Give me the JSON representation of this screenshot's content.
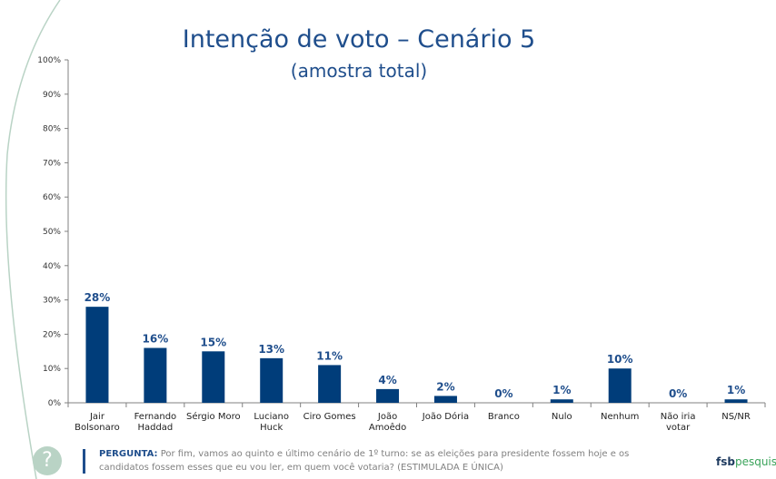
{
  "chart_data": {
    "type": "bar",
    "title": "Intenção de voto – Cenário 5",
    "subtitle": "(amostra total)",
    "categories": [
      [
        "Jair",
        "Bolsonaro"
      ],
      [
        "Fernando",
        "Haddad"
      ],
      [
        "Sérgio Moro"
      ],
      [
        "Luciano",
        "Huck"
      ],
      [
        "Ciro Gomes"
      ],
      [
        "João",
        "Amoêdo"
      ],
      [
        "João Dória"
      ],
      [
        "Branco"
      ],
      [
        "Nulo"
      ],
      [
        "Nenhum"
      ],
      [
        "Não iria",
        "votar"
      ],
      [
        "NS/NR"
      ]
    ],
    "values": [
      28,
      16,
      15,
      13,
      11,
      4,
      2,
      0,
      1,
      10,
      0,
      1
    ],
    "value_labels": [
      "28%",
      "16%",
      "15%",
      "13%",
      "11%",
      "4%",
      "2%",
      "0%",
      "1%",
      "10%",
      "0%",
      "1%"
    ],
    "ylim": [
      0,
      100
    ],
    "yticks": [
      0,
      10,
      20,
      30,
      40,
      50,
      60,
      70,
      80,
      90,
      100
    ],
    "ytick_labels": [
      "0%",
      "10%",
      "20%",
      "30%",
      "40%",
      "50%",
      "60%",
      "70%",
      "80%",
      "90%",
      "100%"
    ],
    "grid": false,
    "bar_color": "#003d7a",
    "label_color": "#1f4e8c"
  },
  "footer": {
    "question_label": "PERGUNTA:",
    "question_text": "Por fim, vamos ao quinto e último cenário de 1º turno: se as eleições para presidente fossem hoje e os candidatos fossem esses que eu vou ler, em quem você votaria? (ESTIMULADA E ÚNICA)",
    "help_icon_glyph": "?"
  },
  "logo": {
    "part1": "fsb",
    "part2": "pesquisa"
  }
}
